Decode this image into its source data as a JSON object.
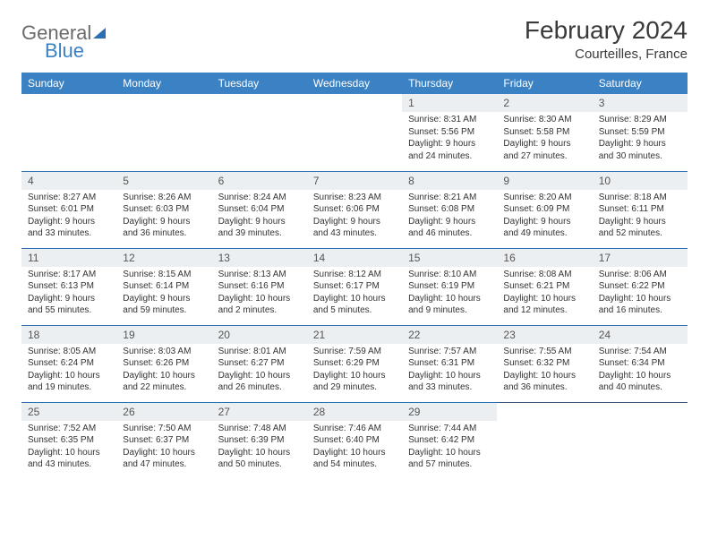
{
  "logo": {
    "part1": "General",
    "part2": "Blue"
  },
  "header": {
    "title": "February 2024",
    "location": "Courteilles, France"
  },
  "colors": {
    "header_bg": "#3b82c4",
    "header_text": "#ffffff",
    "daynum_bg": "#eceff1",
    "cell_border": "#2d6fb3",
    "text": "#333333",
    "title_text": "#3a3a3a"
  },
  "layout": {
    "columns": 7,
    "rows": 5,
    "cell_fontsize_pt": 7.5
  },
  "weekdays": [
    "Sunday",
    "Monday",
    "Tuesday",
    "Wednesday",
    "Thursday",
    "Friday",
    "Saturday"
  ],
  "weeks": [
    [
      null,
      null,
      null,
      null,
      {
        "day": "1",
        "sunrise": "Sunrise: 8:31 AM",
        "sunset": "Sunset: 5:56 PM",
        "daylight": "Daylight: 9 hours and 24 minutes."
      },
      {
        "day": "2",
        "sunrise": "Sunrise: 8:30 AM",
        "sunset": "Sunset: 5:58 PM",
        "daylight": "Daylight: 9 hours and 27 minutes."
      },
      {
        "day": "3",
        "sunrise": "Sunrise: 8:29 AM",
        "sunset": "Sunset: 5:59 PM",
        "daylight": "Daylight: 9 hours and 30 minutes."
      }
    ],
    [
      {
        "day": "4",
        "sunrise": "Sunrise: 8:27 AM",
        "sunset": "Sunset: 6:01 PM",
        "daylight": "Daylight: 9 hours and 33 minutes."
      },
      {
        "day": "5",
        "sunrise": "Sunrise: 8:26 AM",
        "sunset": "Sunset: 6:03 PM",
        "daylight": "Daylight: 9 hours and 36 minutes."
      },
      {
        "day": "6",
        "sunrise": "Sunrise: 8:24 AM",
        "sunset": "Sunset: 6:04 PM",
        "daylight": "Daylight: 9 hours and 39 minutes."
      },
      {
        "day": "7",
        "sunrise": "Sunrise: 8:23 AM",
        "sunset": "Sunset: 6:06 PM",
        "daylight": "Daylight: 9 hours and 43 minutes."
      },
      {
        "day": "8",
        "sunrise": "Sunrise: 8:21 AM",
        "sunset": "Sunset: 6:08 PM",
        "daylight": "Daylight: 9 hours and 46 minutes."
      },
      {
        "day": "9",
        "sunrise": "Sunrise: 8:20 AM",
        "sunset": "Sunset: 6:09 PM",
        "daylight": "Daylight: 9 hours and 49 minutes."
      },
      {
        "day": "10",
        "sunrise": "Sunrise: 8:18 AM",
        "sunset": "Sunset: 6:11 PM",
        "daylight": "Daylight: 9 hours and 52 minutes."
      }
    ],
    [
      {
        "day": "11",
        "sunrise": "Sunrise: 8:17 AM",
        "sunset": "Sunset: 6:13 PM",
        "daylight": "Daylight: 9 hours and 55 minutes."
      },
      {
        "day": "12",
        "sunrise": "Sunrise: 8:15 AM",
        "sunset": "Sunset: 6:14 PM",
        "daylight": "Daylight: 9 hours and 59 minutes."
      },
      {
        "day": "13",
        "sunrise": "Sunrise: 8:13 AM",
        "sunset": "Sunset: 6:16 PM",
        "daylight": "Daylight: 10 hours and 2 minutes."
      },
      {
        "day": "14",
        "sunrise": "Sunrise: 8:12 AM",
        "sunset": "Sunset: 6:17 PM",
        "daylight": "Daylight: 10 hours and 5 minutes."
      },
      {
        "day": "15",
        "sunrise": "Sunrise: 8:10 AM",
        "sunset": "Sunset: 6:19 PM",
        "daylight": "Daylight: 10 hours and 9 minutes."
      },
      {
        "day": "16",
        "sunrise": "Sunrise: 8:08 AM",
        "sunset": "Sunset: 6:21 PM",
        "daylight": "Daylight: 10 hours and 12 minutes."
      },
      {
        "day": "17",
        "sunrise": "Sunrise: 8:06 AM",
        "sunset": "Sunset: 6:22 PM",
        "daylight": "Daylight: 10 hours and 16 minutes."
      }
    ],
    [
      {
        "day": "18",
        "sunrise": "Sunrise: 8:05 AM",
        "sunset": "Sunset: 6:24 PM",
        "daylight": "Daylight: 10 hours and 19 minutes."
      },
      {
        "day": "19",
        "sunrise": "Sunrise: 8:03 AM",
        "sunset": "Sunset: 6:26 PM",
        "daylight": "Daylight: 10 hours and 22 minutes."
      },
      {
        "day": "20",
        "sunrise": "Sunrise: 8:01 AM",
        "sunset": "Sunset: 6:27 PM",
        "daylight": "Daylight: 10 hours and 26 minutes."
      },
      {
        "day": "21",
        "sunrise": "Sunrise: 7:59 AM",
        "sunset": "Sunset: 6:29 PM",
        "daylight": "Daylight: 10 hours and 29 minutes."
      },
      {
        "day": "22",
        "sunrise": "Sunrise: 7:57 AM",
        "sunset": "Sunset: 6:31 PM",
        "daylight": "Daylight: 10 hours and 33 minutes."
      },
      {
        "day": "23",
        "sunrise": "Sunrise: 7:55 AM",
        "sunset": "Sunset: 6:32 PM",
        "daylight": "Daylight: 10 hours and 36 minutes."
      },
      {
        "day": "24",
        "sunrise": "Sunrise: 7:54 AM",
        "sunset": "Sunset: 6:34 PM",
        "daylight": "Daylight: 10 hours and 40 minutes."
      }
    ],
    [
      {
        "day": "25",
        "sunrise": "Sunrise: 7:52 AM",
        "sunset": "Sunset: 6:35 PM",
        "daylight": "Daylight: 10 hours and 43 minutes."
      },
      {
        "day": "26",
        "sunrise": "Sunrise: 7:50 AM",
        "sunset": "Sunset: 6:37 PM",
        "daylight": "Daylight: 10 hours and 47 minutes."
      },
      {
        "day": "27",
        "sunrise": "Sunrise: 7:48 AM",
        "sunset": "Sunset: 6:39 PM",
        "daylight": "Daylight: 10 hours and 50 minutes."
      },
      {
        "day": "28",
        "sunrise": "Sunrise: 7:46 AM",
        "sunset": "Sunset: 6:40 PM",
        "daylight": "Daylight: 10 hours and 54 minutes."
      },
      {
        "day": "29",
        "sunrise": "Sunrise: 7:44 AM",
        "sunset": "Sunset: 6:42 PM",
        "daylight": "Daylight: 10 hours and 57 minutes."
      },
      null,
      null
    ]
  ]
}
